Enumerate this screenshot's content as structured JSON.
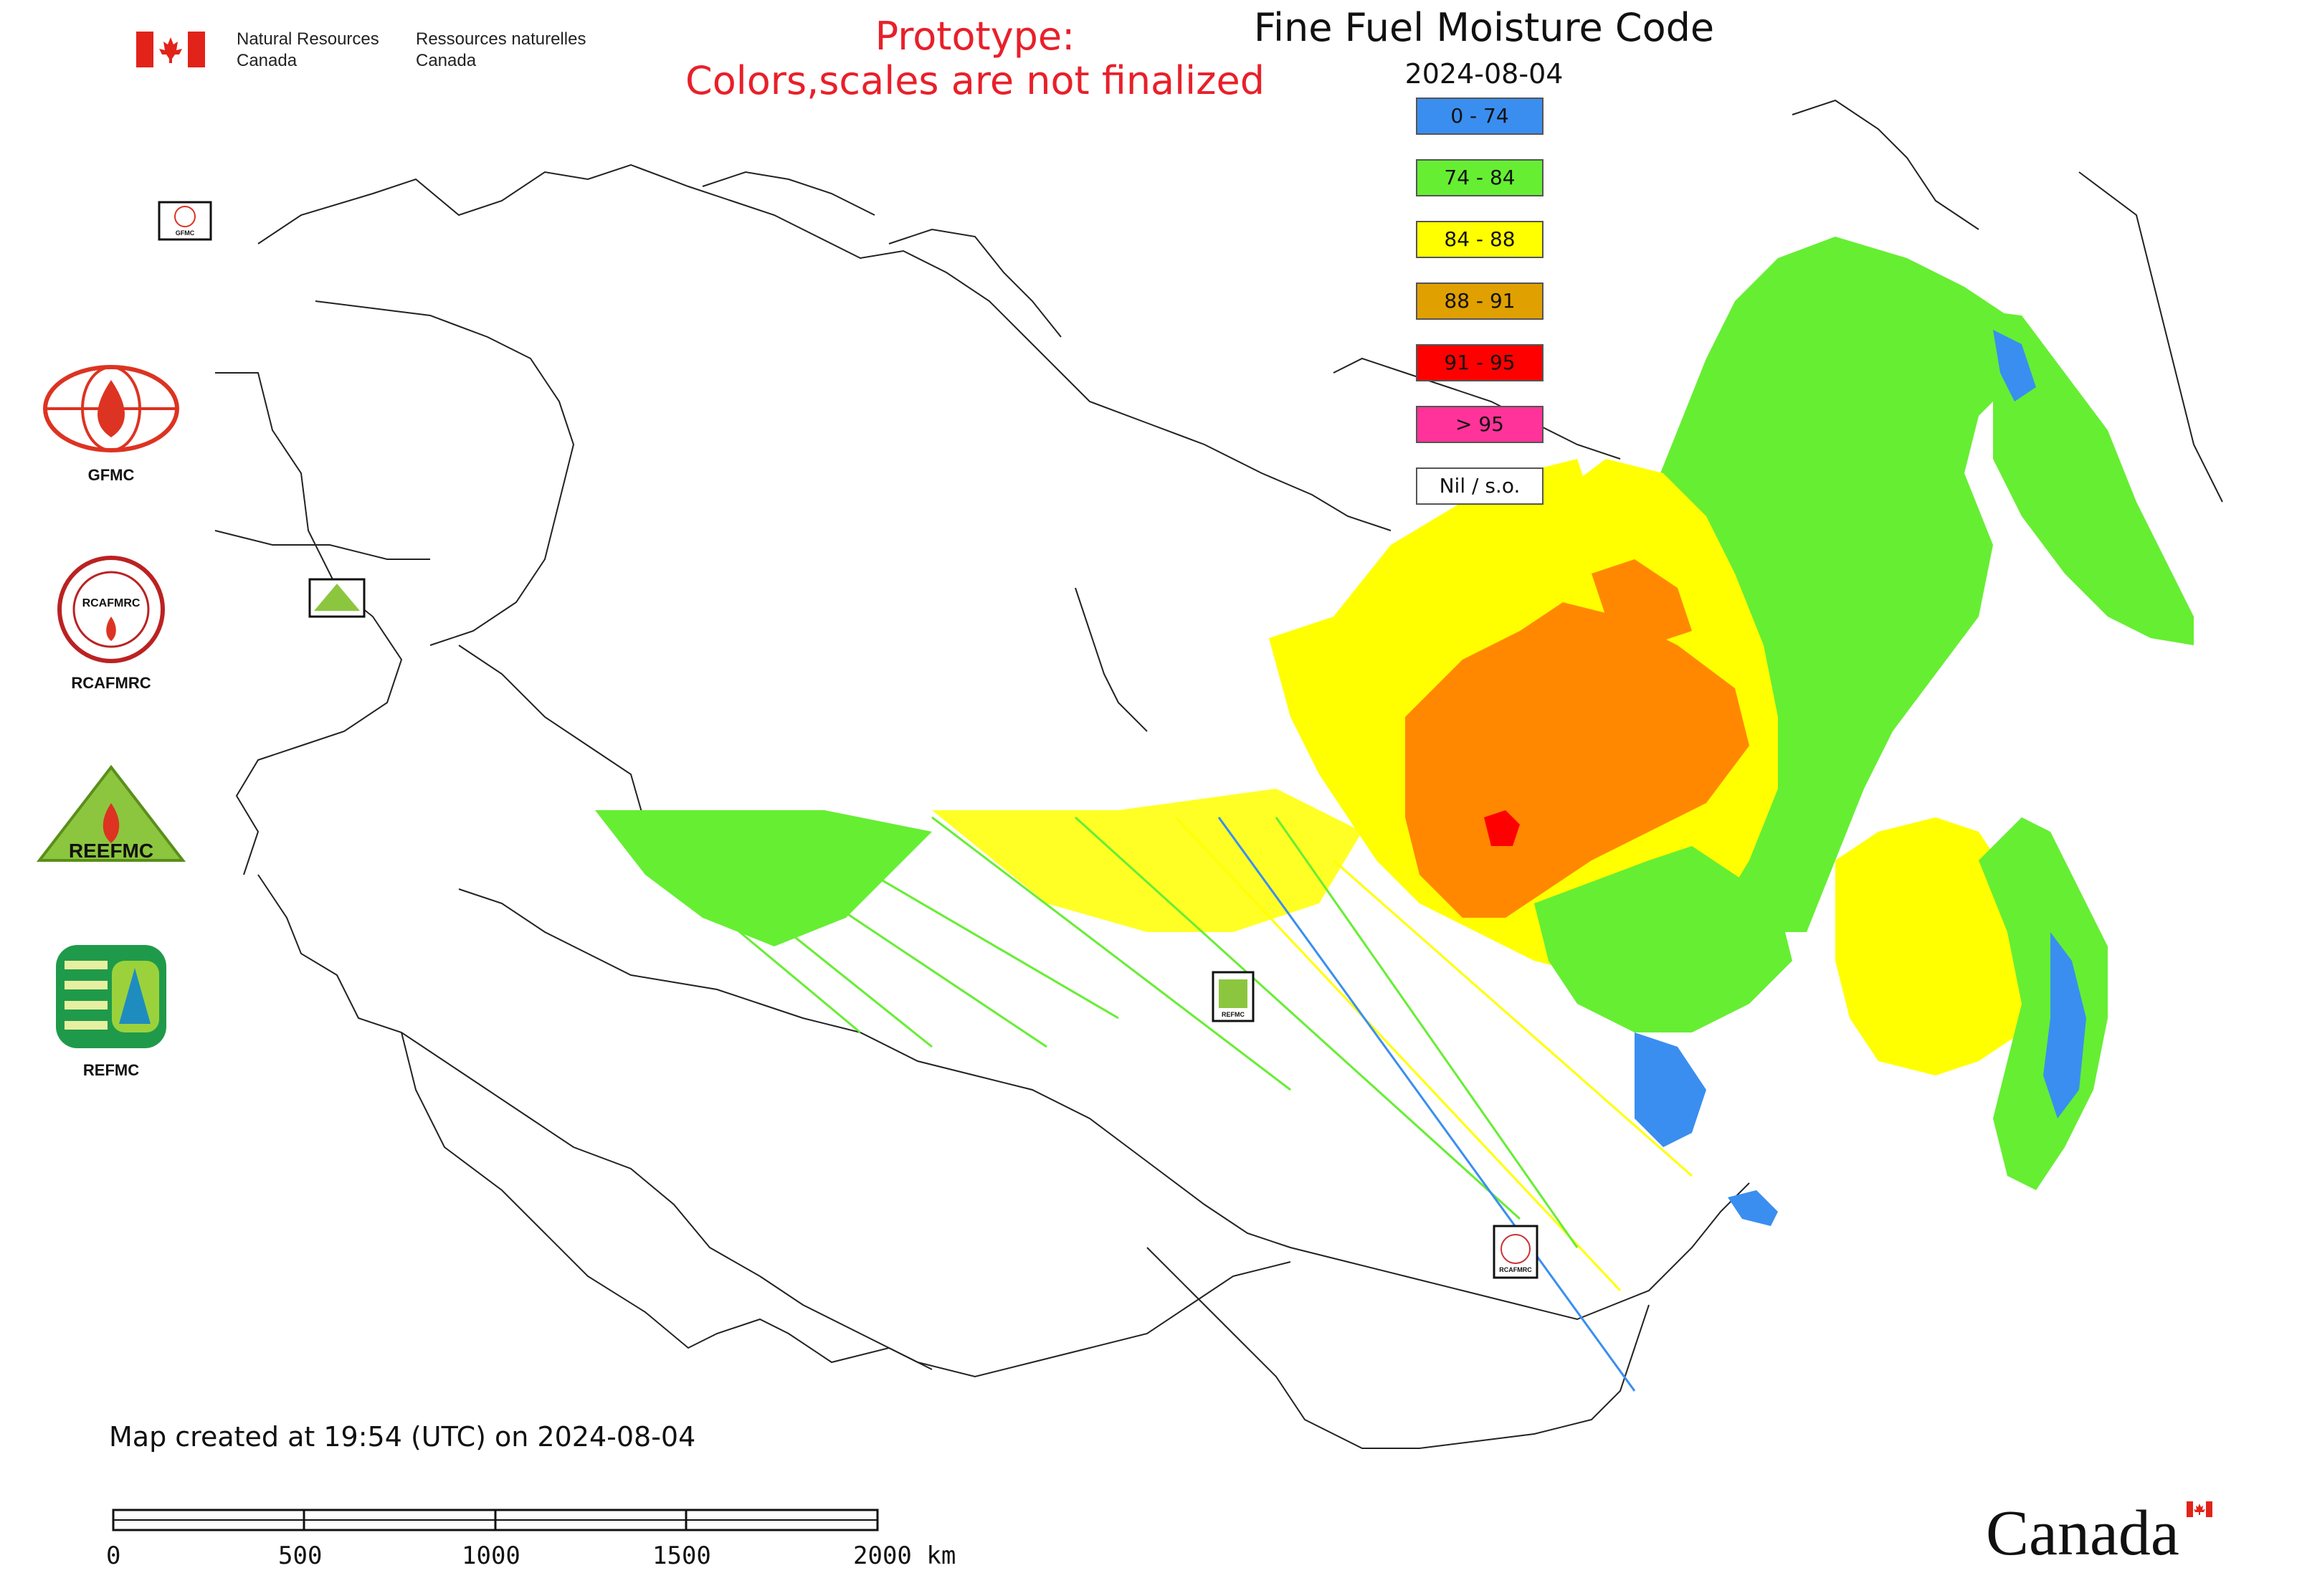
{
  "header": {
    "agency_en_line1": "Natural Resources",
    "agency_en_line2": "Canada",
    "agency_fr_line1": "Ressources naturelles",
    "agency_fr_line2": "Canada",
    "prototype_line1": "Prototype:",
    "prototype_line2": "Colors,scales are not finalized",
    "title": "Fine Fuel Moisture Code",
    "date": "2024-08-04"
  },
  "legend": {
    "items": [
      {
        "label": "0 - 74",
        "color": "#3a8ef0"
      },
      {
        "label": "74 - 84",
        "color": "#66ee33"
      },
      {
        "label": "84 - 88",
        "color": "#ffff00"
      },
      {
        "label": "88 - 91",
        "color": "#e0a000"
      },
      {
        "label": "91 - 95",
        "color": "#ff0000"
      },
      {
        "label": "> 95",
        "color": "#ff3399"
      },
      {
        "label": "Nil / s.o.",
        "color": "#ffffff"
      }
    ]
  },
  "side_logos": [
    {
      "label": "GFMC"
    },
    {
      "label": "RCAFMRC"
    },
    {
      "label": ""
    },
    {
      "label": "REFMC"
    }
  ],
  "map_badges": {
    "gfmc": "GFMC",
    "rcafmrc": "RCAFMRC",
    "refmc": "REFMC"
  },
  "logo_text": {
    "rcafmrc": "RCAFMRC",
    "reefmc": "REEFMC"
  },
  "footer": {
    "created": "Map created at 19:54 (UTC) on 2024-08-04"
  },
  "scale_bar": {
    "ticks": [
      "0",
      "500",
      "1000",
      "1500",
      "2000 km"
    ]
  },
  "wordmark": "Canada",
  "colors": {
    "blue": "#3a8ef0",
    "green": "#66ee33",
    "yellow": "#ffff00",
    "dark_orange": "#e0a000",
    "orange": "#ff8800",
    "red": "#ff0000",
    "pink": "#ff3399"
  }
}
